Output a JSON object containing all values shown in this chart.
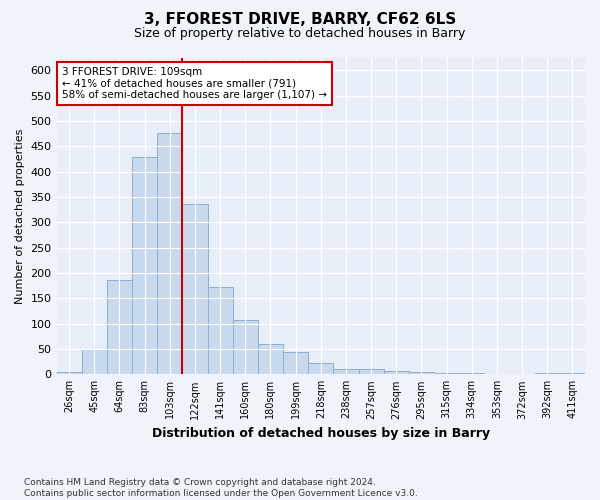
{
  "title1": "3, FFOREST DRIVE, BARRY, CF62 6LS",
  "title2": "Size of property relative to detached houses in Barry",
  "xlabel": "Distribution of detached houses by size in Barry",
  "ylabel": "Number of detached properties",
  "categories": [
    "26sqm",
    "45sqm",
    "64sqm",
    "83sqm",
    "103sqm",
    "122sqm",
    "141sqm",
    "160sqm",
    "180sqm",
    "199sqm",
    "218sqm",
    "238sqm",
    "257sqm",
    "276sqm",
    "295sqm",
    "315sqm",
    "334sqm",
    "353sqm",
    "372sqm",
    "392sqm",
    "411sqm"
  ],
  "values": [
    5,
    50,
    187,
    428,
    476,
    336,
    172,
    107,
    60,
    44,
    22,
    10,
    10,
    7,
    5,
    3,
    2,
    1,
    1,
    3,
    2
  ],
  "bar_color": "#c8d9ee",
  "bar_edge_color": "#8aafd4",
  "vline_x": 4.5,
  "vline_color": "#cc0000",
  "annotation_text": "3 FFOREST DRIVE: 109sqm\n← 41% of detached houses are smaller (791)\n58% of semi-detached houses are larger (1,107) →",
  "annotation_box_color": "#ffffff",
  "annotation_box_edge": "#cc0000",
  "ylim": [
    0,
    625
  ],
  "yticks": [
    0,
    50,
    100,
    150,
    200,
    250,
    300,
    350,
    400,
    450,
    500,
    550,
    600
  ],
  "footnote": "Contains HM Land Registry data © Crown copyright and database right 2024.\nContains public sector information licensed under the Open Government Licence v3.0.",
  "bg_color": "#f0f4fa",
  "plot_bg": "#e8eef8",
  "grid_color": "#ffffff",
  "title1_fontsize": 11,
  "title2_fontsize": 9,
  "ylabel_fontsize": 8,
  "xlabel_fontsize": 9
}
